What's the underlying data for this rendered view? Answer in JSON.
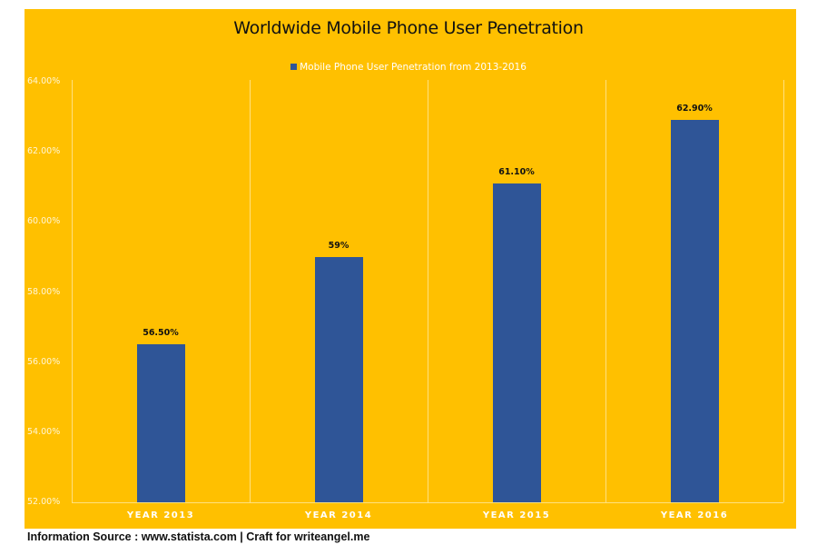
{
  "colors": {
    "background": "#FFC000",
    "bar": "#2F5597",
    "legend_text": "#FFFFFF",
    "title_text": "#111111"
  },
  "chart_data": {
    "type": "bar",
    "title": "Worldwide Mobile Phone User Penetration",
    "legend": [
      "Mobile Phone User Penetration from 2013-2016"
    ],
    "legend_position": "top",
    "categories": [
      "YEAR 2013",
      "YEAR 2014",
      "YEAR 2015",
      "YEAR 2016"
    ],
    "series": [
      {
        "name": "Mobile Phone User Penetration from 2013-2016",
        "values": [
          56.5,
          59.0,
          61.1,
          62.9
        ],
        "data_labels": [
          "56.50%",
          "59%",
          "61.10%",
          "62.90%"
        ]
      }
    ],
    "xlabel": "",
    "ylabel": "",
    "ylim": [
      52,
      64
    ],
    "yticks": [
      "64.00%",
      "62.00%",
      "60.00%",
      "58.00%",
      "56.00%",
      "54.00%",
      "52.00%"
    ],
    "ytick_values": [
      64,
      62,
      60,
      58,
      56,
      54,
      52
    ],
    "grid": "vertical category separators only"
  },
  "footer": {
    "text": "Information Source : www.statista.com | Craft for writeangel.me"
  }
}
